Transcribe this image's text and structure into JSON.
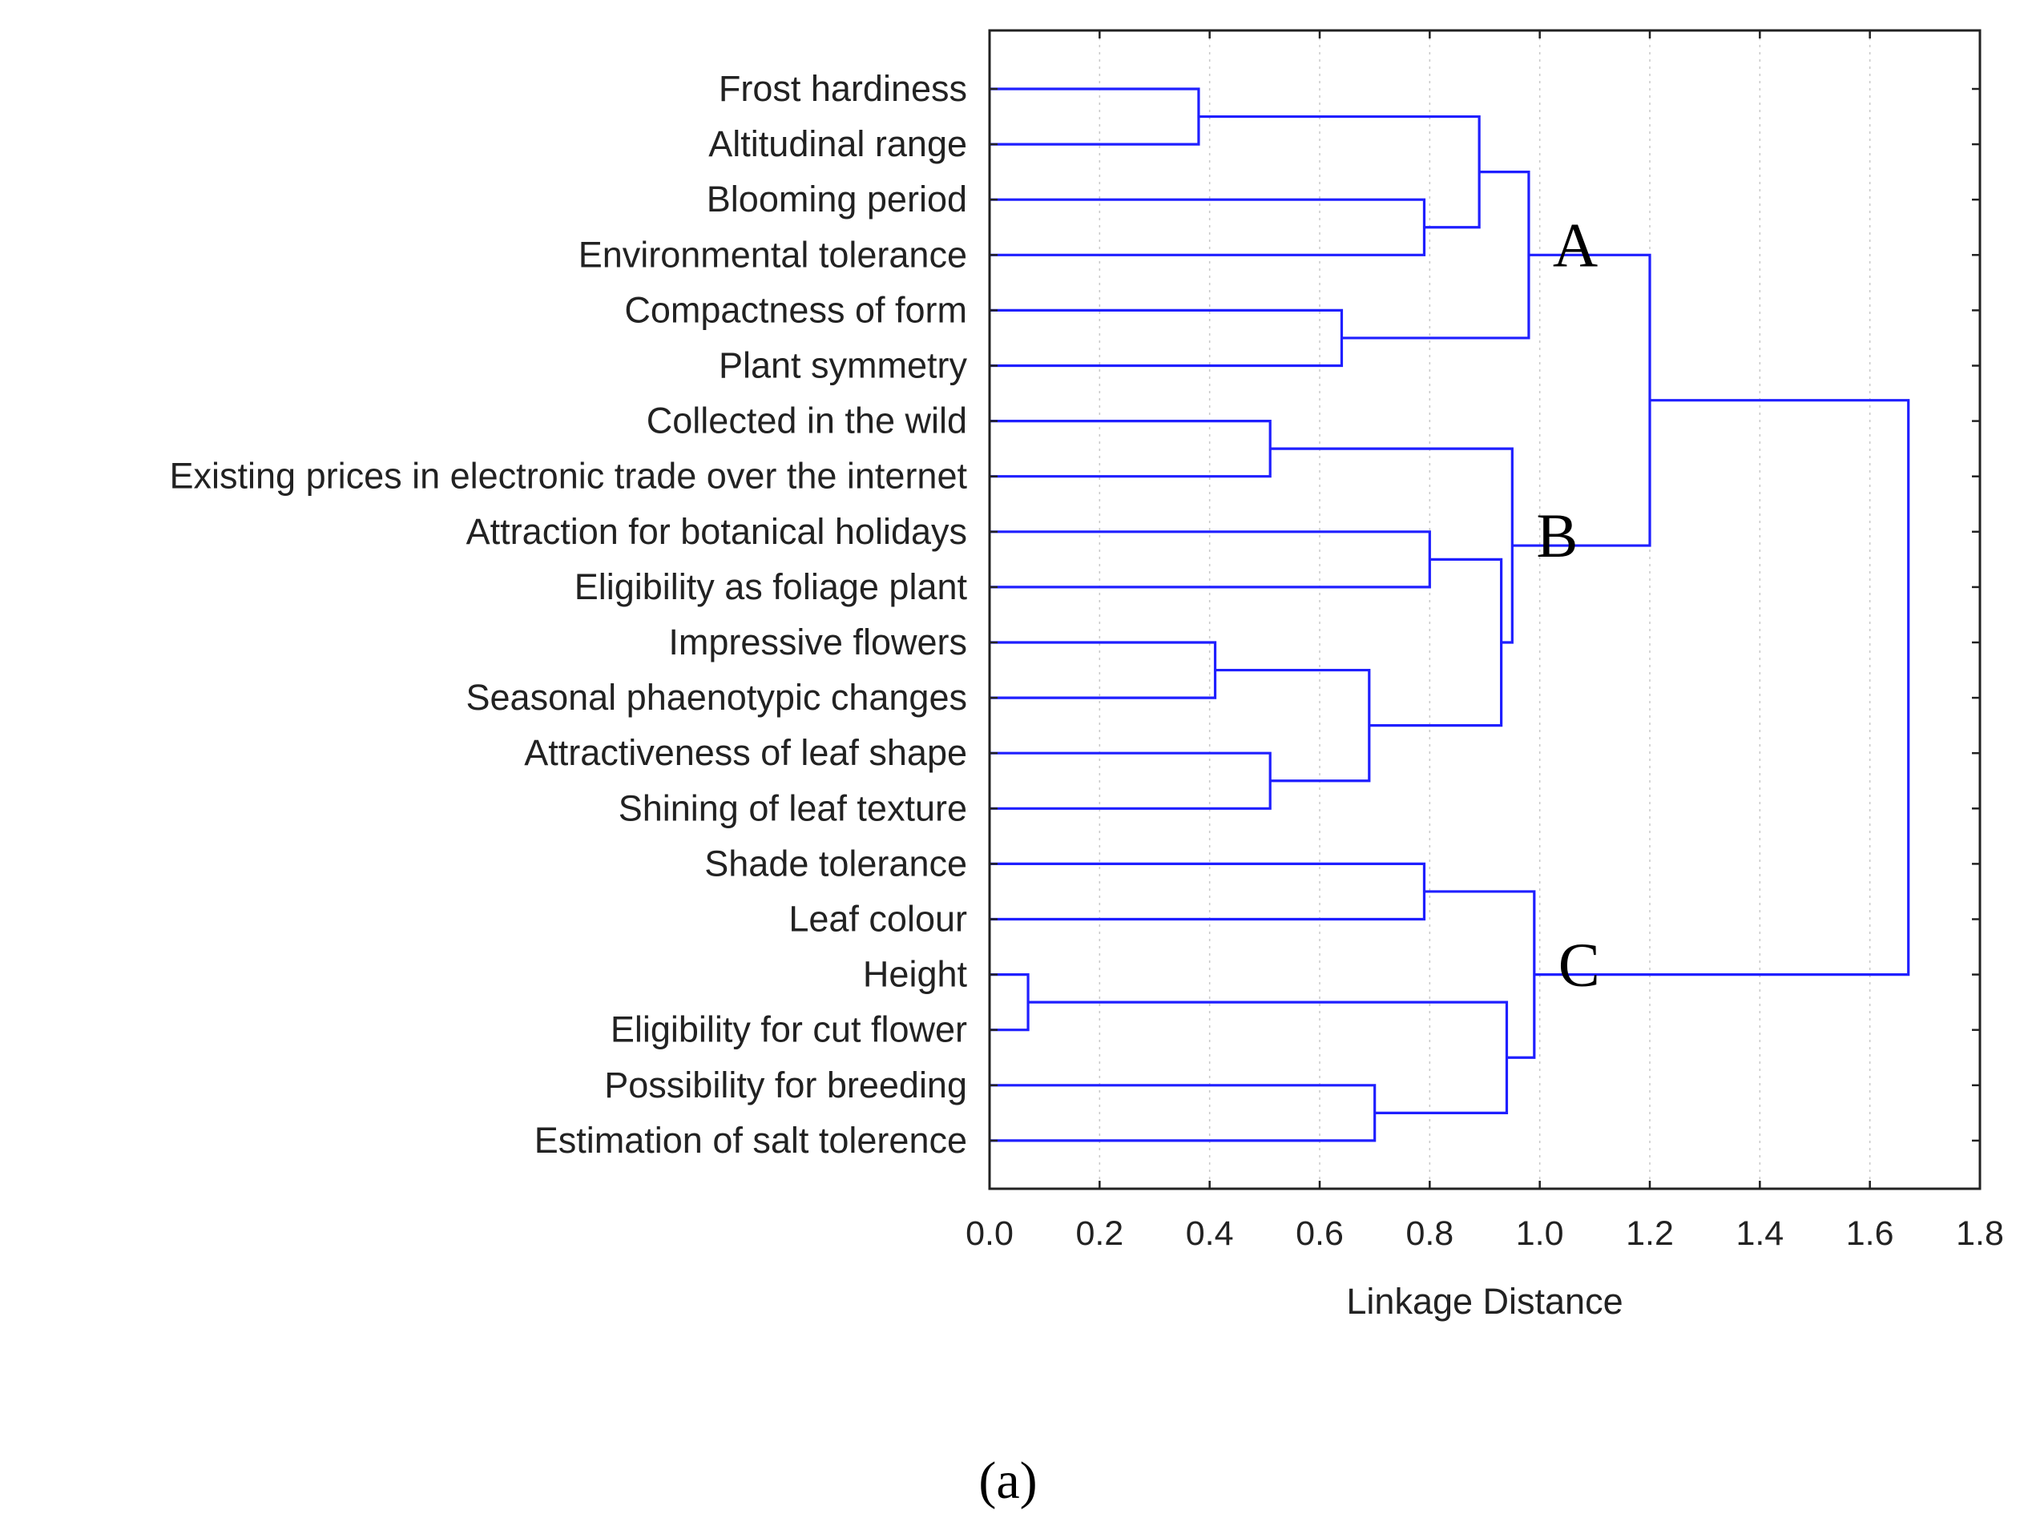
{
  "chart_data": {
    "type": "dendrogram",
    "xlabel": "Linkage Distance",
    "xlim": [
      0.0,
      1.8
    ],
    "x_ticks": [
      "0.0",
      "0.2",
      "0.4",
      "0.6",
      "0.8",
      "1.0",
      "1.2",
      "1.4",
      "1.6",
      "1.8"
    ],
    "grid": "vertical dotted gridlines",
    "leaves": [
      "Frost hardiness",
      "Altitudinal range",
      "Blooming period",
      "Environmental tolerance",
      "Compactness of form",
      "Plant symmetry",
      "Collected in the wild",
      "Existing prices in electronic trade over the internet",
      "Attraction for botanical holidays",
      "Eligibility as foliage plant",
      "Impressive flowers",
      "Seasonal phaenotypic changes",
      "Attractiveness of leaf shape",
      "Shining of leaf texture",
      "Shade tolerance",
      "Leaf colour",
      "Height",
      "Eligibility for cut flower",
      "Possibility for breeding",
      "Estimation of salt tolerence"
    ],
    "merges": [
      {
        "a": "L0",
        "b": "L1",
        "height": 0.38
      },
      {
        "a": "L2",
        "b": "L3",
        "height": 0.79
      },
      {
        "a": "M0",
        "b": "M1",
        "height": 0.89
      },
      {
        "a": "L4",
        "b": "L5",
        "height": 0.64
      },
      {
        "a": "M2",
        "b": "M3",
        "height": 0.98
      },
      {
        "a": "L6",
        "b": "L7",
        "height": 0.51
      },
      {
        "a": "L8",
        "b": "L9",
        "height": 0.8
      },
      {
        "a": "L10",
        "b": "L11",
        "height": 0.41
      },
      {
        "a": "L12",
        "b": "L13",
        "height": 0.51
      },
      {
        "a": "M7",
        "b": "M8",
        "height": 0.69
      },
      {
        "a": "M6",
        "b": "M9",
        "height": 0.93
      },
      {
        "a": "M5",
        "b": "M10",
        "height": 0.95
      },
      {
        "a": "M4",
        "b": "M11",
        "height": 1.2
      },
      {
        "a": "L14",
        "b": "L15",
        "height": 0.79
      },
      {
        "a": "L16",
        "b": "L17",
        "height": 0.07
      },
      {
        "a": "L18",
        "b": "L19",
        "height": 0.7
      },
      {
        "a": "M14",
        "b": "M15",
        "height": 0.94
      },
      {
        "a": "M13",
        "b": "M16",
        "height": 0.99
      },
      {
        "a": "M12",
        "b": "M17",
        "height": 1.67
      }
    ],
    "cluster_labels": [
      {
        "text": "A",
        "merge": "M4"
      },
      {
        "text": "B",
        "merge": "M11"
      },
      {
        "text": "C",
        "merge": "M17"
      }
    ],
    "line_color": "#1f1fff"
  },
  "caption": "(a)"
}
